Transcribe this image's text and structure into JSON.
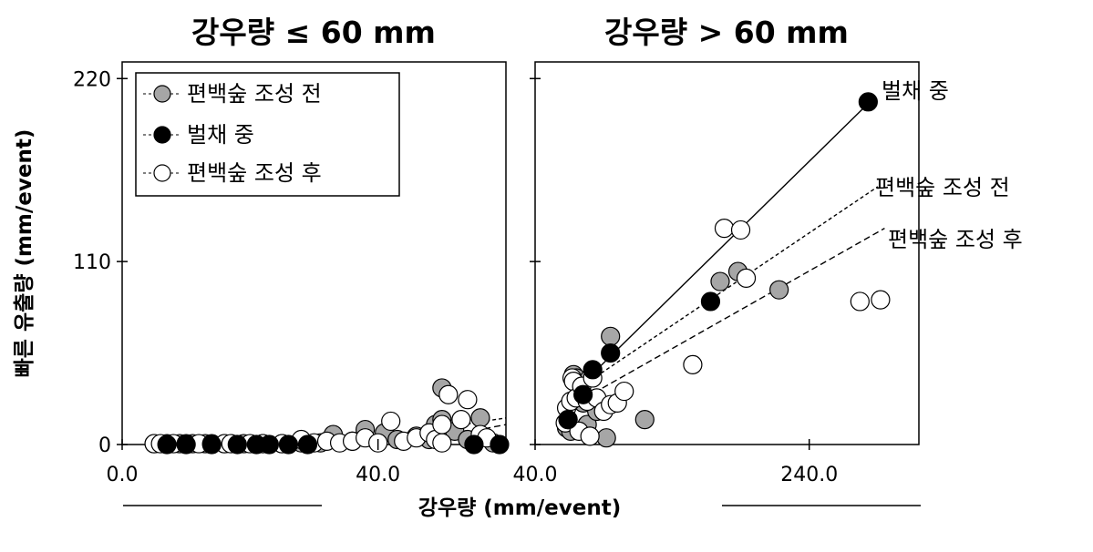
{
  "figure": {
    "ylabel": "빠른 유출량 (mm/event)",
    "xlabel": "강우량 (mm/event)"
  },
  "legend": {
    "items": [
      {
        "label": "편백숲 조성 전",
        "marker_fill": "#a6a6a6"
      },
      {
        "label": "벌채 중",
        "marker_fill": "#000000"
      },
      {
        "label": "편백숲 조성 후",
        "marker_fill": "#ffffff"
      }
    ]
  },
  "chart_data": [
    {
      "type": "scatter",
      "title": "강우량 ≤ 60 mm",
      "xlim": [
        0,
        60
      ],
      "ylim": [
        0,
        230
      ],
      "xticks": [
        {
          "value": 0,
          "label": "0.0"
        },
        {
          "value": 40,
          "label": "40.0"
        }
      ],
      "yticks": [
        {
          "value": 0,
          "label": "0"
        },
        {
          "value": 110,
          "label": "110"
        },
        {
          "value": 220,
          "label": "220"
        }
      ],
      "series": [
        {
          "name": "편백숲 조성 전",
          "color": "#a6a6a6",
          "points": [
            [
              5,
              0.5
            ],
            [
              7,
              0.5
            ],
            [
              9,
              0.5
            ],
            [
              11,
              0.5
            ],
            [
              13,
              0.5
            ],
            [
              16,
              0.5
            ],
            [
              19,
              0.5
            ],
            [
              22,
              0.5
            ],
            [
              25,
              0.5
            ],
            [
              28,
              1
            ],
            [
              31,
              1
            ],
            [
              33,
              6
            ],
            [
              36,
              2
            ],
            [
              38,
              9
            ],
            [
              41,
              7
            ],
            [
              43,
              3
            ],
            [
              46,
              5
            ],
            [
              48,
              3
            ],
            [
              49,
              12
            ],
            [
              50,
              15
            ],
            [
              50,
              34
            ],
            [
              52,
              8
            ],
            [
              54,
              3
            ],
            [
              56,
              16
            ],
            [
              58,
              1
            ]
          ],
          "fit": [
            [
              50,
              10
            ],
            [
              60,
              16
            ]
          ]
        },
        {
          "name": "벌채 중",
          "color": "#000000",
          "points": [
            [
              7,
              0
            ],
            [
              10,
              0
            ],
            [
              14,
              0
            ],
            [
              18,
              0
            ],
            [
              21,
              0
            ],
            [
              23,
              0
            ],
            [
              26,
              0
            ],
            [
              29,
              0
            ],
            [
              55,
              0
            ],
            [
              59,
              0
            ]
          ],
          "fit": [
            [
              55,
              1
            ],
            [
              60,
              3
            ]
          ]
        },
        {
          "name": "편백숲 조성 후",
          "color": "#ffffff",
          "points": [
            [
              5,
              0.5
            ],
            [
              6,
              0.5
            ],
            [
              8,
              0.5
            ],
            [
              10,
              0.5
            ],
            [
              12,
              0.5
            ],
            [
              14,
              0.5
            ],
            [
              16,
              0.5
            ],
            [
              17,
              0.5
            ],
            [
              20,
              0.5
            ],
            [
              22,
              0.5
            ],
            [
              25,
              0.5
            ],
            [
              28,
              3
            ],
            [
              30,
              1
            ],
            [
              32,
              2
            ],
            [
              34,
              1
            ],
            [
              36,
              2
            ],
            [
              38,
              4
            ],
            [
              40,
              1
            ],
            [
              42,
              14
            ],
            [
              44,
              2
            ],
            [
              46,
              4
            ],
            [
              48,
              7
            ],
            [
              49,
              3
            ],
            [
              50,
              1
            ],
            [
              50,
              12
            ],
            [
              51,
              30
            ],
            [
              53,
              15
            ],
            [
              54,
              27
            ],
            [
              56,
              6
            ],
            [
              57,
              4
            ]
          ],
          "fit": [
            [
              52,
              6
            ],
            [
              60,
              12
            ]
          ]
        }
      ]
    },
    {
      "type": "scatter",
      "title": "강우량 > 60 mm",
      "xlim": [
        40,
        320
      ],
      "ylim": [
        0,
        230
      ],
      "xticks": [
        {
          "value": 40,
          "label": "40.0"
        },
        {
          "value": 240,
          "label": "240.0"
        }
      ],
      "yticks": [
        {
          "value": 0
        },
        {
          "value": 110
        },
        {
          "value": 220
        }
      ],
      "series": [
        {
          "name": "편백숲 조성 전",
          "color": "#a6a6a6",
          "points": [
            [
              63,
              10
            ],
            [
              66,
              8
            ],
            [
              68,
              42
            ],
            [
              70,
              40
            ],
            [
              75,
              25
            ],
            [
              78,
              12
            ],
            [
              80,
              40
            ],
            [
              85,
              20
            ],
            [
              92,
              4
            ],
            [
              95,
              65
            ],
            [
              120,
              15
            ],
            [
              175,
              98
            ],
            [
              188,
              104
            ],
            [
              218,
              93
            ]
          ],
          "fit": [
            [
              65,
              30
            ],
            [
              290,
              155
            ]
          ]
        },
        {
          "name": "벌채 중",
          "color": "#000000",
          "points": [
            [
              64,
              15
            ],
            [
              75,
              30
            ],
            [
              82,
              45
            ],
            [
              95,
              55
            ],
            [
              168,
              86
            ],
            [
              283,
              206
            ]
          ],
          "fit": [
            [
              64,
              28
            ],
            [
              283,
              205
            ]
          ]
        },
        {
          "name": "편백숲 조성 후",
          "color": "#ffffff",
          "points": [
            [
              62,
              13
            ],
            [
              63,
              22
            ],
            [
              64,
              15
            ],
            [
              66,
              26
            ],
            [
              67,
              40
            ],
            [
              68,
              38
            ],
            [
              70,
              28
            ],
            [
              72,
              8
            ],
            [
              74,
              35
            ],
            [
              78,
              26
            ],
            [
              80,
              5
            ],
            [
              82,
              40
            ],
            [
              85,
              28
            ],
            [
              90,
              20
            ],
            [
              95,
              24
            ],
            [
              100,
              25
            ],
            [
              105,
              32
            ],
            [
              155,
              48
            ],
            [
              178,
              130
            ],
            [
              190,
              129
            ],
            [
              194,
              100
            ],
            [
              277,
              86
            ],
            [
              292,
              87
            ]
          ],
          "fit": [
            [
              70,
              25
            ],
            [
              295,
              130
            ]
          ]
        }
      ],
      "annotations": [
        {
          "text": "벌채 중",
          "anchor": [
            293,
            212
          ]
        },
        {
          "text": "편백숲 조성 전",
          "anchor": [
            275,
            158
          ]
        },
        {
          "text": "편백숲 조성 후",
          "anchor": [
            288,
            127
          ]
        }
      ]
    }
  ]
}
